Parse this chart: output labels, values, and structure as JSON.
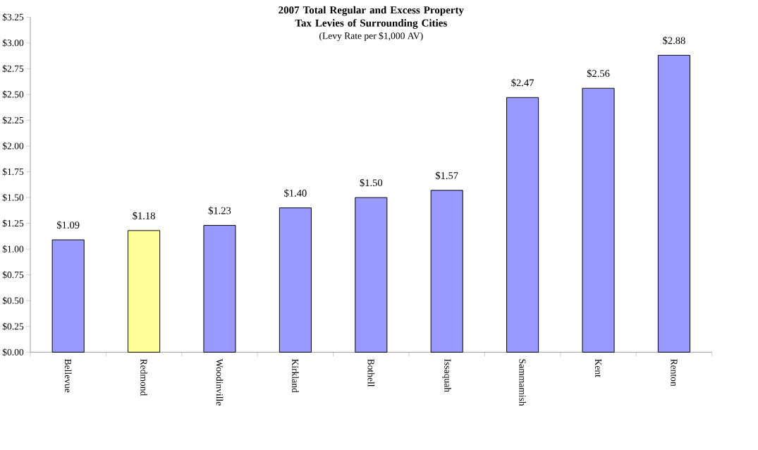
{
  "chart_data": {
    "type": "bar",
    "title": "2007 Total Regular and Excess Property Tax Levies of Surrounding Cities",
    "subtitle": "(Levy Rate per $1,000 AV)",
    "categories": [
      "Bellevue",
      "Redmond",
      "Woodinville",
      "Kirkland",
      "Bothell",
      "Issaquah",
      "Sammamish",
      "Kent",
      "Renton"
    ],
    "values": [
      1.09,
      1.18,
      1.23,
      1.4,
      1.5,
      1.57,
      2.47,
      2.56,
      2.88
    ],
    "value_labels": [
      "$1.09",
      "$1.18",
      "$1.23",
      "$1.40",
      "$1.50",
      "$1.57",
      "$2.47",
      "$2.56",
      "$2.88"
    ],
    "colors": [
      "#9999ff",
      "#ffff99",
      "#9999ff",
      "#9999ff",
      "#9999ff",
      "#9999ff",
      "#9999ff",
      "#9999ff",
      "#9999ff"
    ],
    "ylim": [
      0,
      3.25
    ],
    "yticks": [
      {
        "value": 0,
        "label": "$0.00"
      },
      {
        "value": 0.25,
        "label": "$0.25"
      },
      {
        "value": 0.5,
        "label": "$0.50"
      },
      {
        "value": 0.75,
        "label": "$0.75"
      },
      {
        "value": 1,
        "label": "$1.00"
      },
      {
        "value": 1.25,
        "label": "$1.25"
      },
      {
        "value": 1.5,
        "label": "$1.50"
      },
      {
        "value": 1.75,
        "label": "$1.75"
      },
      {
        "value": 2,
        "label": "$2.00"
      },
      {
        "value": 2.25,
        "label": "$2.25"
      },
      {
        "value": 2.5,
        "label": "$2.50"
      },
      {
        "value": 2.75,
        "label": "$2.75"
      },
      {
        "value": 3,
        "label": "$3.00"
      },
      {
        "value": 3.25,
        "label": "$3.25"
      }
    ],
    "grid": false
  }
}
